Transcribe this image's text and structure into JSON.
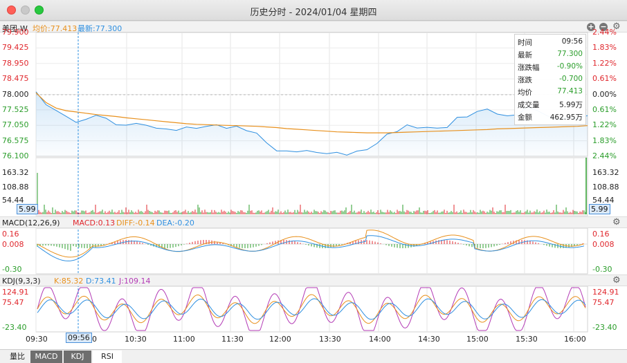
{
  "window": {
    "title": "历史分时 - 2024/01/04 星期四"
  },
  "header": {
    "symbol": "美团-W",
    "avg_label": "均价:77.413",
    "last_label": "最新:77.300"
  },
  "price_axis_left": [
    "79.900",
    "79.425",
    "78.950",
    "78.475",
    "78.000",
    "77.525",
    "77.050",
    "76.575",
    "76.100"
  ],
  "price_axis_right": [
    "2.44%",
    "1.83%",
    "1.22%",
    "0.61%",
    "0.00%",
    "0.61%",
    "1.22%",
    "1.83%",
    "2.44%"
  ],
  "volume_axis": [
    "163.32",
    "108.88",
    "54.44"
  ],
  "volume_box": "5.99",
  "tooltip": {
    "rows": [
      {
        "k": "时间",
        "v": "09:56",
        "c": "#222"
      },
      {
        "k": "最新",
        "v": "77.300",
        "c": "#2a9d2a"
      },
      {
        "k": "涨跌幅",
        "v": "-0.90%",
        "c": "#2a9d2a"
      },
      {
        "k": "涨跌",
        "v": "-0.700",
        "c": "#2a9d2a"
      },
      {
        "k": "均价",
        "v": "77.413",
        "c": "#2a9d2a"
      },
      {
        "k": "成交量",
        "v": "5.99万",
        "c": "#222"
      },
      {
        "k": "金额",
        "v": "462.95万",
        "c": "#222"
      }
    ]
  },
  "macd": {
    "title": "MACD(12,26,9)",
    "macd_label": "MACD:0.13",
    "diff_label": "DIFF:-0.14",
    "dea_label": "DEA:-0.20",
    "axis": [
      "0.16",
      "0.008",
      "-0.30"
    ]
  },
  "kdj": {
    "title": "KDJ(9,3,3)",
    "k_label": "K:85.32",
    "d_label": "D:73.41",
    "j_label": "J:109.14",
    "axis": [
      "124.91",
      "75.47",
      "-23.40"
    ]
  },
  "time_labels": [
    "09:30",
    "09:56",
    "10:30",
    "11:00",
    "11:30",
    "12:00",
    "13:30",
    "14:00",
    "14:30",
    "15:00",
    "15:30",
    "16:00"
  ],
  "time_partial": "0",
  "tabs": [
    "量比",
    "MACD",
    "KDJ",
    "RSI"
  ],
  "colors": {
    "price": "#2e8fe0",
    "avg": "#e8901c",
    "up": "#e0272d",
    "down": "#2a9d2a",
    "diff": "#2e8fe0",
    "dea": "#e8901c",
    "j": "#b33ab5"
  },
  "chart_data": {
    "type": "line",
    "x_range": [
      "09:30",
      "16:10"
    ],
    "ylim": [
      76.1,
      79.9
    ],
    "prev_close": 78.0,
    "series": [
      {
        "name": "最新",
        "values": [
          78.08,
          77.66,
          77.55,
          77.28,
          77.18,
          77.22,
          77.35,
          77.3,
          77.02,
          77.1,
          77.08,
          77.06,
          76.98,
          76.9,
          76.94,
          76.96,
          76.98,
          77.02,
          77.04,
          77.0,
          76.98,
          76.92,
          76.8,
          76.5,
          76.3,
          76.22,
          76.28,
          76.25,
          76.22,
          76.2,
          76.18,
          76.18,
          76.22,
          76.32,
          76.5,
          76.75,
          76.9,
          77.02,
          77.0,
          76.98,
          76.95,
          77.02,
          77.25,
          77.35,
          77.45,
          77.55,
          77.42,
          77.3,
          77.42,
          77.58,
          77.52,
          77.35,
          77.2,
          77.34,
          77.22,
          77.35
        ]
      },
      {
        "name": "均价",
        "values": [
          78.05,
          77.75,
          77.58,
          77.5,
          77.46,
          77.42,
          77.38,
          77.35,
          77.32,
          77.28,
          77.25,
          77.22,
          77.19,
          77.16,
          77.13,
          77.1,
          77.08,
          77.07,
          77.06,
          77.05,
          77.04,
          77.03,
          77.02,
          77.0,
          76.98,
          76.95,
          76.93,
          76.91,
          76.89,
          76.87,
          76.85,
          76.84,
          76.83,
          76.82,
          76.82,
          76.82,
          76.83,
          76.84,
          76.85,
          76.86,
          76.87,
          76.88,
          76.89,
          76.9,
          76.91,
          76.92,
          76.94,
          76.95,
          76.96,
          76.97,
          76.98,
          76.99,
          77.0,
          77.01,
          77.02,
          77.04
        ]
      }
    ]
  }
}
